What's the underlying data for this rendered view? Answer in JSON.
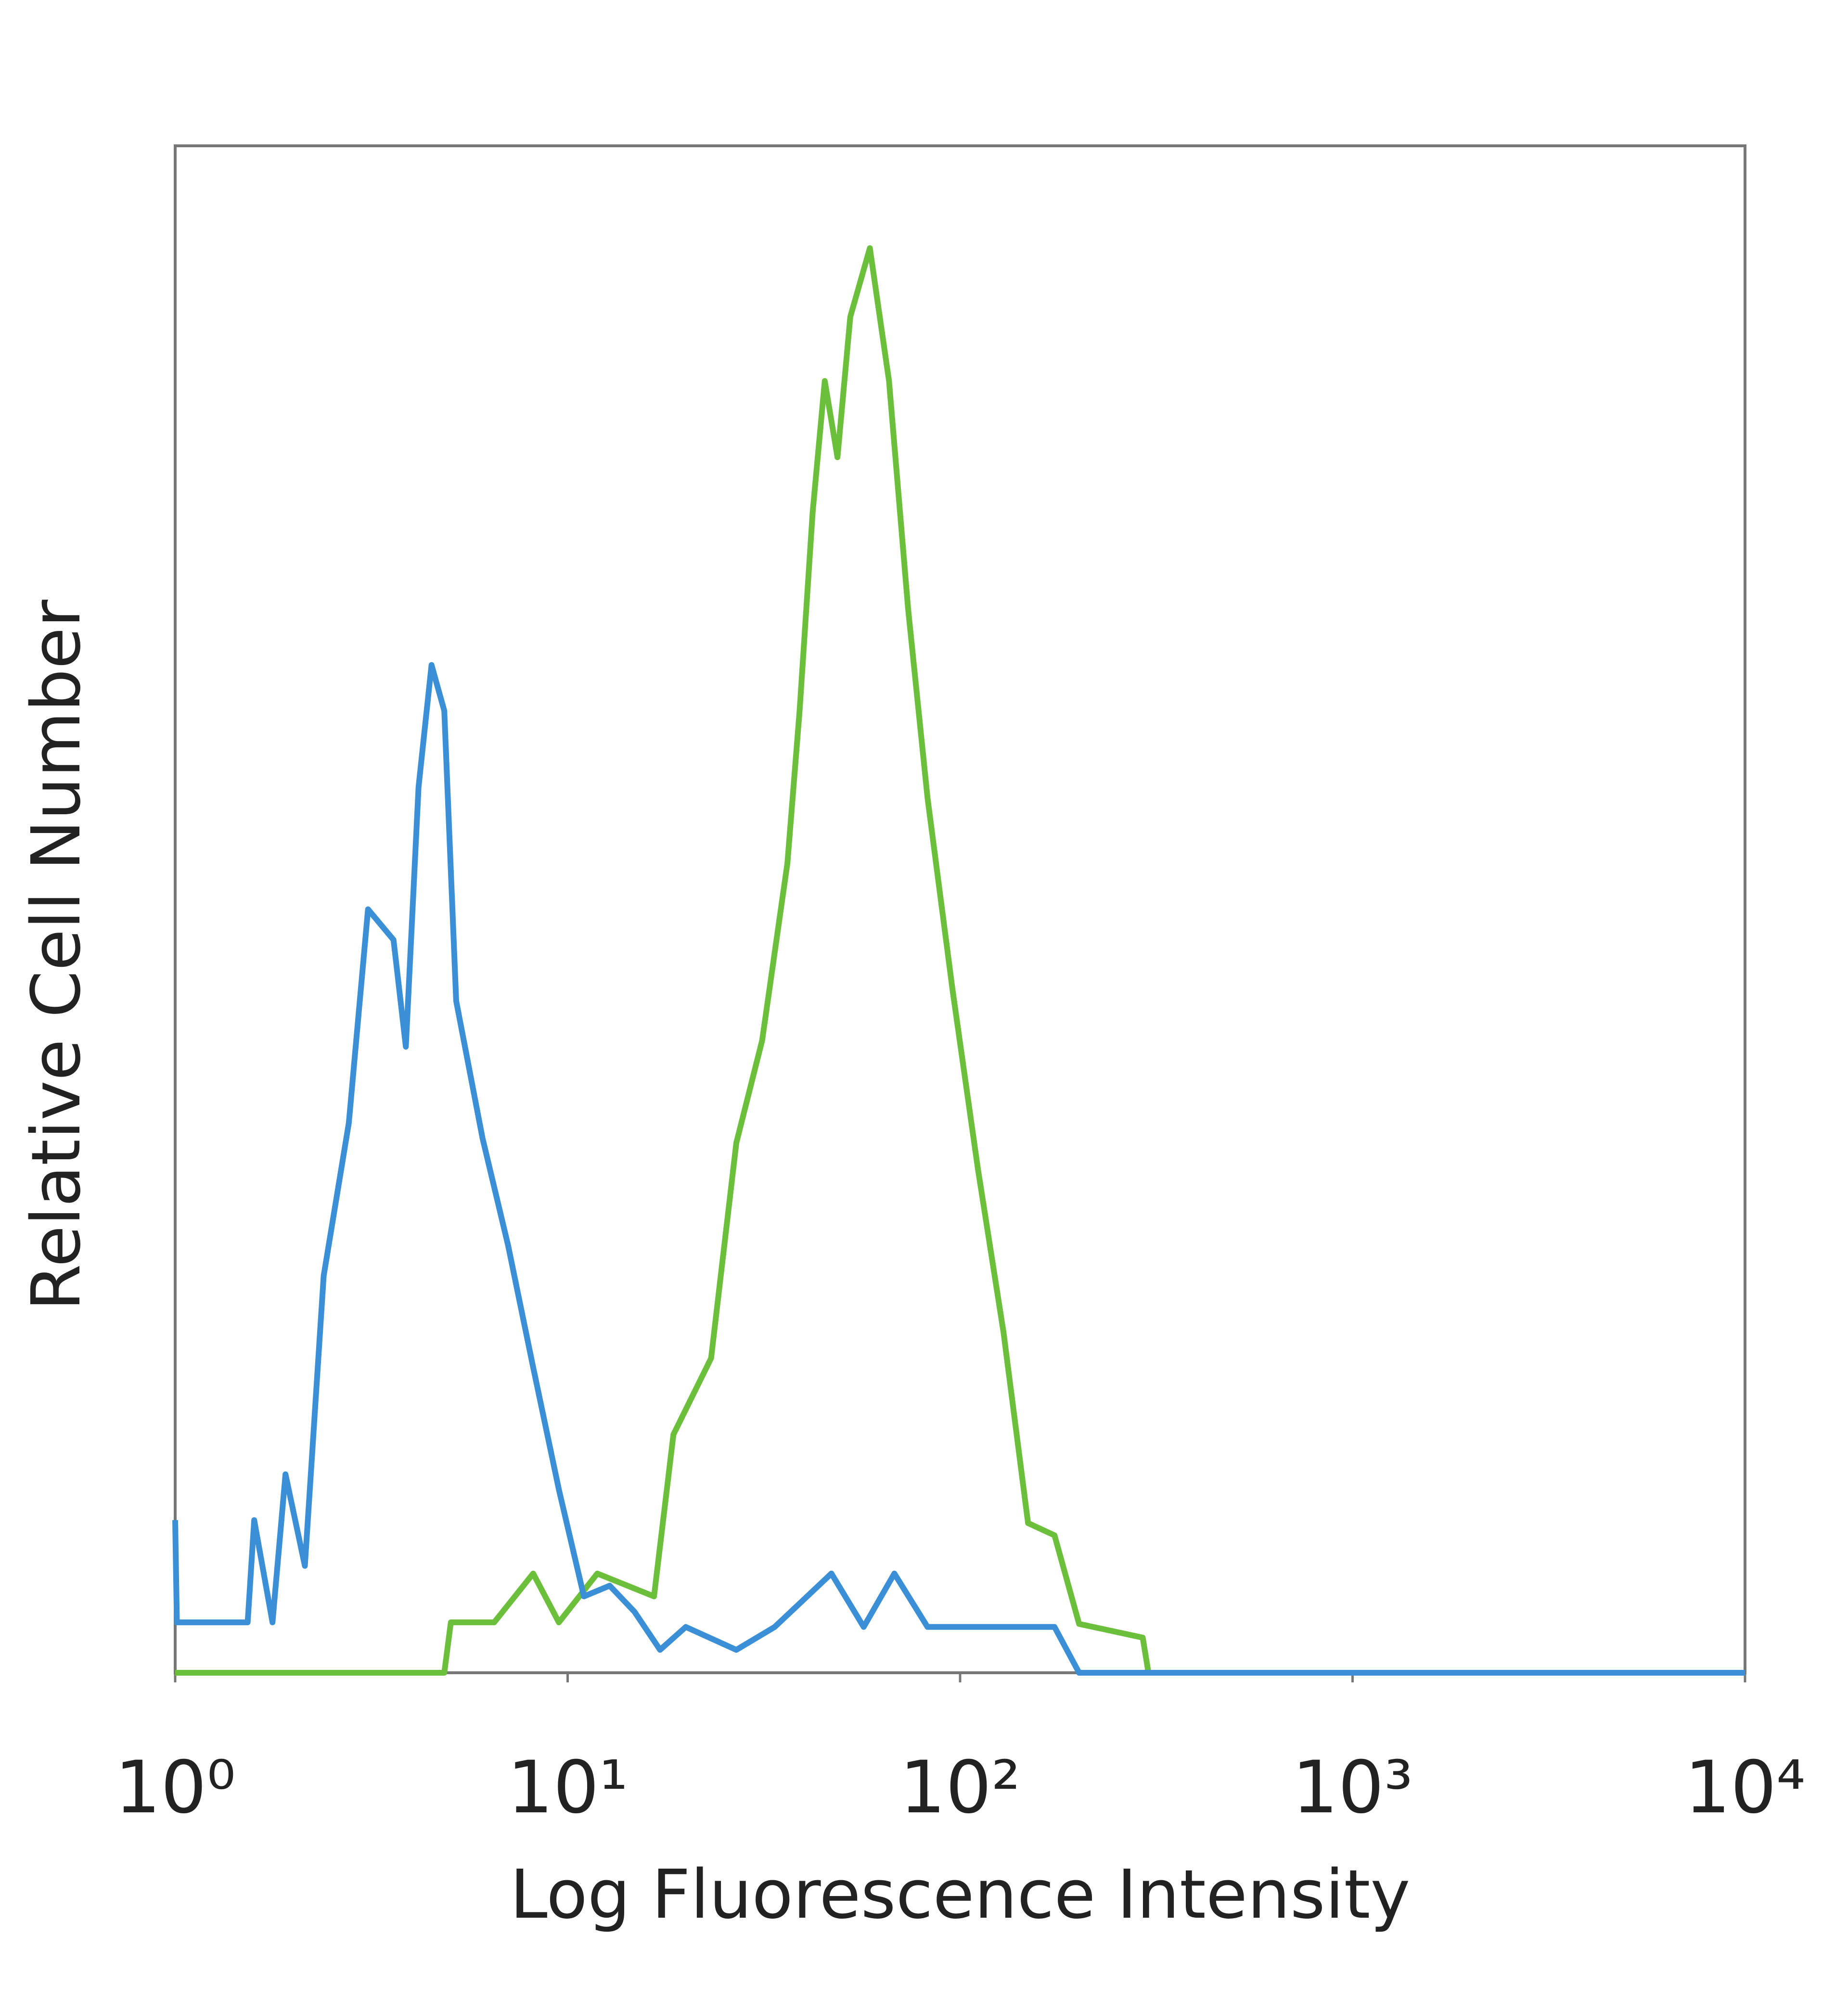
{
  "chart_data": {
    "type": "line",
    "xlabel": "Log Fluorescence Intensity",
    "ylabel": "Relative Cell Number",
    "xscale": "log",
    "xlim": [
      1,
      10000
    ],
    "ylim": [
      0,
      100
    ],
    "xticks": [
      {
        "value": 1,
        "label": "10⁰"
      },
      {
        "value": 10,
        "label": "10¹"
      },
      {
        "value": 100,
        "label": "10²"
      },
      {
        "value": 1000,
        "label": "10³"
      },
      {
        "value": 10000,
        "label": "10⁴"
      }
    ],
    "series": [
      {
        "color": "#6cbf3a",
        "x": [
          1,
          4.85,
          5.04,
          6.5,
          8.17,
          9.5,
          11.9,
          16.6,
          18.6,
          23.2,
          26.9,
          31.3,
          36.3,
          39,
          42.1,
          45.2,
          48.7,
          52.5,
          58.9,
          65.9,
          73.7,
          82.6,
          95.7,
          111,
          129,
          149,
          174,
          201,
          292,
          302,
          10000
        ],
        "values": [
          0,
          0,
          3.3,
          3.3,
          6.5,
          3.3,
          6.5,
          5,
          15.6,
          20.6,
          34.7,
          41.4,
          53,
          63,
          76,
          84.6,
          79.6,
          88.8,
          93.3,
          84.6,
          69.7,
          57.3,
          44.7,
          33,
          22.3,
          9.8,
          9,
          3.2,
          2.3,
          0,
          0
        ]
      },
      {
        "color": "#3a8fd6",
        "x": [
          1,
          1.01,
          1.53,
          1.59,
          1.77,
          1.91,
          2.14,
          2.39,
          2.77,
          3.1,
          3.6,
          3.87,
          4.17,
          4.5,
          4.85,
          5.2,
          6.07,
          7.05,
          8.17,
          9.5,
          11,
          12.8,
          14.8,
          17.2,
          20,
          26.9,
          33.7,
          47,
          56.8,
          68,
          82.6,
          119,
          174,
          201,
          10000
        ],
        "values": [
          10,
          3.3,
          3.3,
          10,
          3.3,
          13,
          7,
          26,
          36,
          50,
          48,
          41,
          58,
          66,
          63,
          44,
          35,
          28,
          20,
          12,
          5,
          5.7,
          4,
          1.5,
          3,
          1.5,
          3,
          6.5,
          3,
          6.5,
          3,
          3,
          3,
          0,
          0
        ]
      }
    ]
  }
}
